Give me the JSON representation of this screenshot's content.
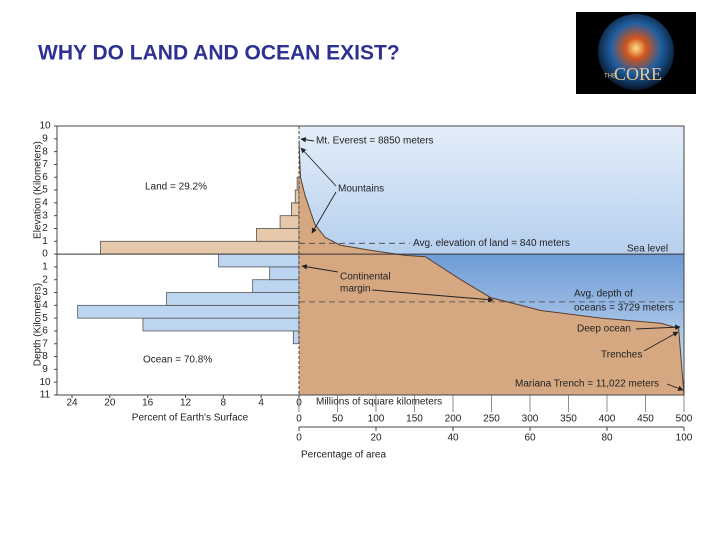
{
  "header": {
    "title": "WHY DO LAND AND OCEAN EXIST?",
    "logo": {
      "prefix": "THE",
      "text": "CORE"
    }
  },
  "chart_data": {
    "type": "hypsographic",
    "y_label_up": "Elevation (Kilometers)",
    "y_label_down": "Depth (Kilometers)",
    "ylim": [
      -11,
      10
    ],
    "yticks": [
      10,
      9,
      8,
      7,
      6,
      5,
      4,
      3,
      2,
      1,
      0,
      {
        "value": -1,
        "label": "1"
      },
      {
        "value": -2,
        "label": "2"
      },
      {
        "value": -3,
        "label": "3"
      },
      {
        "value": -4,
        "label": "4"
      },
      {
        "value": -5,
        "label": "5"
      },
      {
        "value": -6,
        "label": "6"
      },
      {
        "value": -7,
        "label": "7"
      },
      {
        "value": -8,
        "label": "8"
      },
      {
        "value": -9,
        "label": "9"
      },
      {
        "value": -10,
        "label": "10"
      },
      {
        "value": -11,
        "label": "11"
      }
    ],
    "histogram": {
      "xlabel": "Percent of Earth's Surface",
      "xlim": [
        0,
        24
      ],
      "xticks": [
        24,
        20,
        16,
        12,
        8,
        4,
        0
      ],
      "bins": [
        -7,
        -6,
        -5,
        -4,
        -3,
        -2,
        -1,
        0,
        1,
        2,
        3,
        4,
        5,
        6
      ],
      "values": [
        0.6,
        16.5,
        23.4,
        14.0,
        4.9,
        3.1,
        8.5,
        21.0,
        4.5,
        2.0,
        0.8,
        0.4,
        0.2
      ],
      "land_color": "#e6c8ab",
      "ocean_color": "#bcd6f2",
      "land_label": "Land = 29.2%",
      "ocean_label": "Ocean = 70.8%"
    },
    "curve": {
      "xlabel": "Millions of square kilometers",
      "xlim": [
        0,
        500
      ],
      "xticks": [
        0,
        50,
        100,
        150,
        200,
        250,
        300,
        350,
        400,
        450,
        500
      ],
      "x": [
        0,
        2,
        7.8,
        20.8,
        33.9,
        53.4,
        92.4,
        138,
        164,
        210,
        249,
        314,
        392,
        470,
        493,
        500
      ],
      "y": [
        8.85,
        6,
        4.6,
        2.3,
        1.3,
        0.7,
        0.3,
        -0.1,
        -0.2,
        -2.0,
        -3.4,
        -4.4,
        -5.0,
        -5.4,
        -5.8,
        -11.022
      ],
      "color": "#d5a881"
    },
    "percent_axis": {
      "label": "Percentage of area",
      "xlim": [
        0,
        100
      ],
      "xticks": [
        0,
        20,
        40,
        60,
        80,
        100
      ]
    },
    "reference_lines": [
      {
        "lines": [
          "Avg. elevation of land = 840 meters"
        ],
        "value": 0.84
      },
      {
        "lines": [
          "Avg. depth of",
          "oceans = 3729 meters"
        ],
        "value": -3.729
      },
      {
        "lines": [
          "Sea level"
        ],
        "value": 0
      }
    ],
    "annotations": [
      {
        "lines": [
          "Mt. Everest = 8850 meters"
        ]
      },
      {
        "lines": [
          "Mountains"
        ]
      },
      {
        "lines": [
          "Continental",
          "margin"
        ]
      },
      {
        "lines": [
          "Deep ocean"
        ]
      },
      {
        "lines": [
          "Trenches"
        ]
      },
      {
        "lines": [
          "Mariana Trench = 11,022 meters"
        ]
      }
    ]
  }
}
